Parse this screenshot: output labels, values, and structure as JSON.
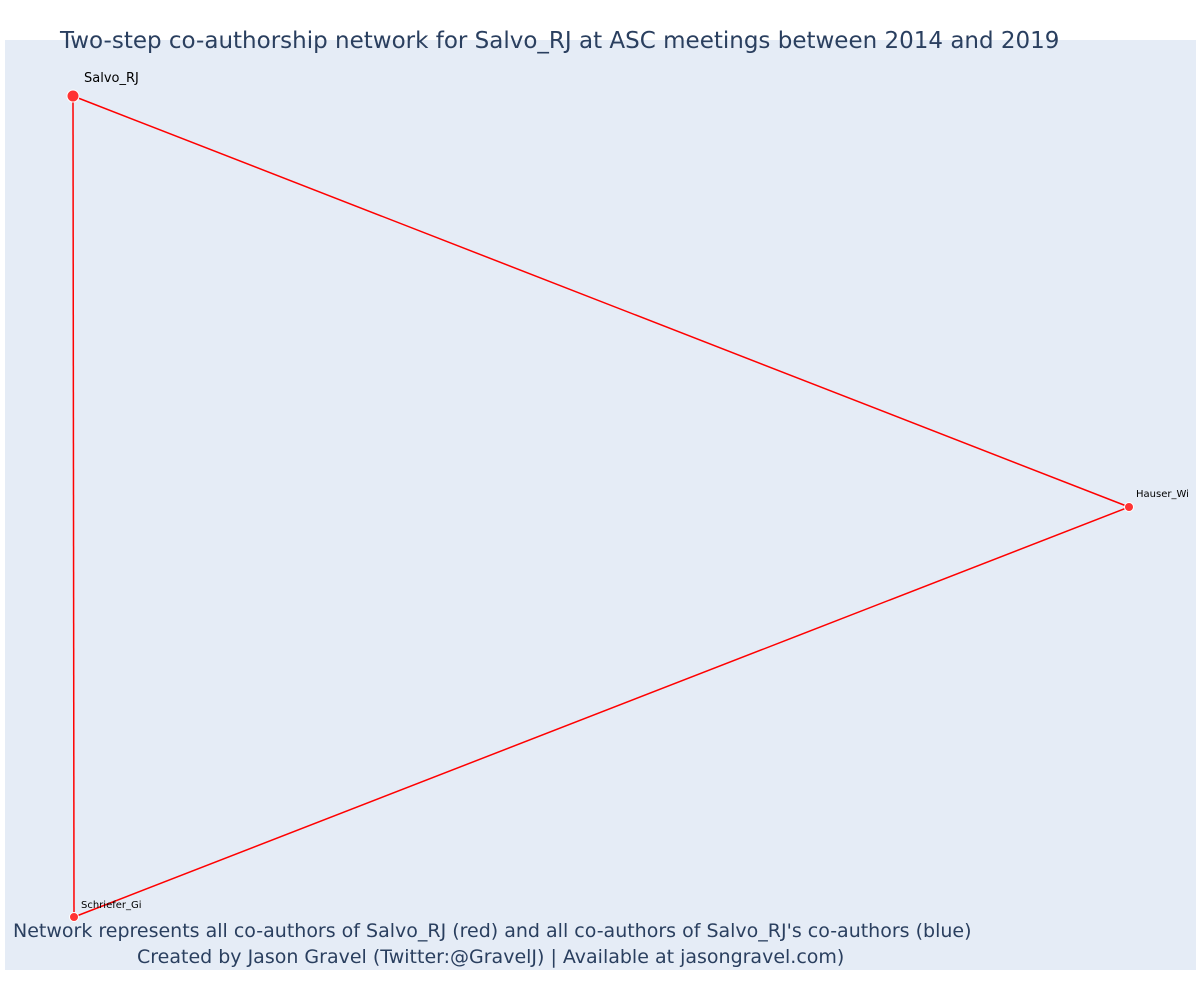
{
  "title": "Two-step co-authorship network for Salvo_RJ at ASC meetings between 2014 and 2019",
  "caption": {
    "line1": "Network represents all co-authors of Salvo_RJ (red) and all co-authors of Salvo_RJ's co-authors (blue)",
    "line2": "Created by Jason Gravel (Twitter:@GravelJ) | Available at jasongravel.com)"
  },
  "colors": {
    "background": "#e5ecf6",
    "edge": "#ff0000",
    "node": "#ff3333",
    "title": "#2a3f5f"
  },
  "network": {
    "nodes": [
      {
        "id": "Salvo_RJ",
        "label": "Salvo_RJ",
        "group": "focal"
      },
      {
        "id": "Hauser_Wi",
        "label": "Hauser_Wi",
        "group": "co-author"
      },
      {
        "id": "Schriefer_Gi",
        "label": "Schriefer_Gi",
        "group": "co-author"
      }
    ],
    "edges": [
      {
        "source": "Salvo_RJ",
        "target": "Hauser_Wi"
      },
      {
        "source": "Salvo_RJ",
        "target": "Schriefer_Gi"
      },
      {
        "source": "Hauser_Wi",
        "target": "Schriefer_Gi"
      }
    ]
  }
}
